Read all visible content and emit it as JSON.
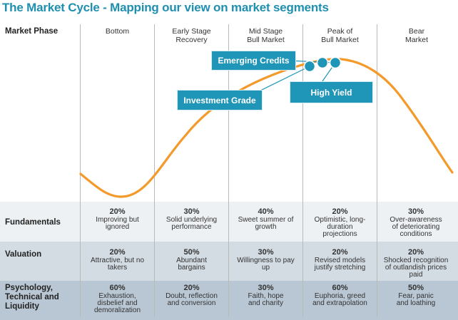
{
  "title": "The Market Cycle - Mapping our view on market segments",
  "row_labels": {
    "market_phase": "Market Phase",
    "fundamentals": "Fundamentals",
    "valuation": "Valuation",
    "psychology": [
      "Psychology,",
      "Technical and",
      "Liquidity"
    ]
  },
  "phases": [
    {
      "label": [
        "Bottom"
      ]
    },
    {
      "label": [
        "Early Stage",
        "Recovery"
      ]
    },
    {
      "label": [
        "Mid Stage",
        "Bull Market"
      ]
    },
    {
      "label": [
        "Peak of",
        "Bull Market"
      ]
    },
    {
      "label": [
        "Bear",
        "Market"
      ]
    }
  ],
  "fundamentals": [
    {
      "value": "20%",
      "text": [
        "Improving but",
        "ignored"
      ]
    },
    {
      "value": "30%",
      "text": [
        "Solid underlying",
        "performance"
      ]
    },
    {
      "value": "40%",
      "text": [
        "Sweet summer of",
        "growth"
      ]
    },
    {
      "value": "20%",
      "text": [
        "Optimistic, long-",
        "duration",
        "projections"
      ]
    },
    {
      "value": "30%",
      "text": [
        "Over-awareness",
        "of deteriorating",
        "conditions"
      ]
    }
  ],
  "valuation": [
    {
      "value": "20%",
      "text": [
        "Attractive, but no",
        "takers"
      ]
    },
    {
      "value": "50%",
      "text": [
        "Abundant",
        "bargains"
      ]
    },
    {
      "value": "30%",
      "text": [
        "Willingness to pay",
        "up"
      ]
    },
    {
      "value": "20%",
      "text": [
        "Revised models",
        "justify stretching"
      ]
    },
    {
      "value": "20%",
      "text": [
        "Shocked recognition",
        "of outlandish prices",
        "paid"
      ]
    }
  ],
  "psychology": [
    {
      "value": "60%",
      "text": [
        "Exhaustion,",
        "disbelief and",
        "demoralization"
      ]
    },
    {
      "value": "20%",
      "text": [
        "Doubt, reflection",
        "and conversion"
      ]
    },
    {
      "value": "30%",
      "text": [
        "Faith, hope",
        "and charity"
      ]
    },
    {
      "value": "60%",
      "text": [
        "Euphoria, greed",
        "and extrapolation"
      ]
    },
    {
      "value": "50%",
      "text": [
        "Fear, panic",
        "and loathing"
      ]
    }
  ],
  "callouts": {
    "emerging": "Emerging Credits",
    "investment": "Investment Grade",
    "high_yield": "High Yield"
  },
  "colors": {
    "title": "#1f8fb0",
    "curve": "#f39a2b",
    "callout": "#1f95b8",
    "band_light": "#eef1f4",
    "band_mid": "#d3dbe3",
    "band_dark": "#b9c6d3"
  }
}
